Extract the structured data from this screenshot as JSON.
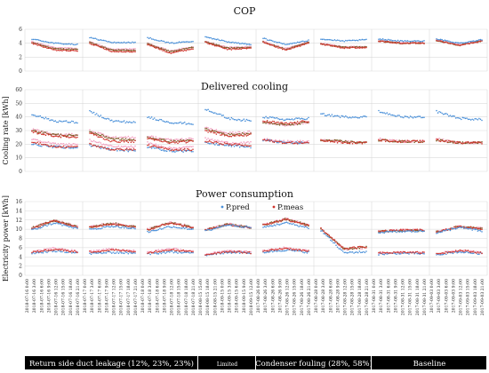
{
  "chart_data": [
    {
      "type": "scatter",
      "title": "COP",
      "ylabel": "",
      "ylim": [
        0,
        6
      ],
      "yticks": [
        0,
        2,
        4,
        6
      ],
      "grid": true,
      "segments": [
        {
          "blue": [
            4.6,
            4.0,
            3.8
          ],
          "pink": [
            4.2,
            3.4,
            3.2
          ],
          "red": [
            4.0,
            3.0,
            2.9
          ],
          "brown": [
            4.1,
            3.2,
            3.1
          ]
        },
        {
          "blue": [
            4.8,
            4.1,
            4.1
          ],
          "pink": [
            4.2,
            3.1,
            3.2
          ],
          "red": [
            4.0,
            2.8,
            2.8
          ],
          "brown": [
            4.1,
            3.0,
            3.0
          ]
        },
        {
          "blue": [
            4.8,
            4.0,
            4.3
          ],
          "pink": [
            4.0,
            2.9,
            3.5
          ],
          "red": [
            3.8,
            2.6,
            3.2
          ],
          "brown": [
            3.9,
            2.8,
            3.4
          ]
        },
        {
          "blue": [
            4.9,
            4.2,
            3.8
          ],
          "pink": [
            4.3,
            3.4,
            3.5
          ],
          "red": [
            4.1,
            3.1,
            3.3
          ],
          "brown": [
            4.2,
            3.3,
            3.4
          ]
        },
        {
          "blue": [
            4.7,
            3.8,
            4.4
          ],
          "pink": [
            4.3,
            3.2,
            4.2
          ],
          "red": [
            4.1,
            3.0,
            4.0
          ],
          "brown": [
            4.2,
            3.1,
            4.1
          ]
        },
        {
          "blue": [
            4.6,
            4.3,
            4.5
          ],
          "pink": [
            4.0,
            3.5,
            3.5
          ],
          "red": [
            3.9,
            3.3,
            3.4
          ],
          "brown": [
            3.9,
            3.4,
            3.5
          ]
        },
        {
          "blue": [
            4.6,
            4.3,
            4.3
          ],
          "pink": [
            4.4,
            4.1,
            4.1
          ],
          "red": [
            4.3,
            4.0,
            4.0
          ],
          "brown": [
            4.3,
            4.0,
            4.0
          ]
        },
        {
          "blue": [
            4.6,
            4.0,
            4.5
          ],
          "pink": [
            4.5,
            3.8,
            4.4
          ],
          "red": [
            4.4,
            3.7,
            4.3
          ],
          "brown": [
            4.4,
            3.7,
            4.3
          ]
        }
      ]
    },
    {
      "type": "scatter",
      "title": "Delivered cooling",
      "ylabel": "Cooling rate [kWh]",
      "ylim": [
        0,
        60
      ],
      "yticks": [
        0,
        10,
        20,
        30,
        40,
        50,
        60
      ],
      "grid": true,
      "segments": [
        {
          "blue": [
            42,
            37,
            36
          ],
          "pink": [
            31,
            27,
            27
          ],
          "red": [
            29,
            26,
            25
          ],
          "brown": [
            30,
            27,
            26
          ],
          "pink2": [
            24,
            20,
            20
          ],
          "blue2": [
            20,
            18,
            17
          ],
          "red2": [
            22,
            18,
            18
          ]
        },
        {
          "blue": [
            44,
            37,
            36
          ],
          "pink": [
            30,
            25,
            25
          ],
          "red": [
            28,
            22,
            22
          ],
          "brown": [
            29,
            24,
            23
          ],
          "pink2": [
            23,
            18,
            18
          ],
          "blue2": [
            19,
            16,
            15
          ],
          "red2": [
            20,
            16,
            16
          ]
        },
        {
          "blue": [
            40,
            36,
            35
          ],
          "pink": [
            26,
            23,
            24
          ],
          "red": [
            24,
            21,
            22
          ],
          "brown": [
            25,
            22,
            23
          ],
          "pink2": [
            21,
            17,
            18
          ],
          "blue2": [
            18,
            15,
            15
          ],
          "red2": [
            19,
            16,
            16
          ]
        },
        {
          "blue": [
            46,
            39,
            37
          ],
          "pink": [
            32,
            28,
            29
          ],
          "red": [
            30,
            26,
            27
          ],
          "brown": [
            31,
            27,
            28
          ],
          "pink2": [
            24,
            21,
            21
          ],
          "blue2": [
            21,
            19,
            18
          ],
          "red2": [
            22,
            20,
            19
          ]
        },
        {
          "blue": [
            40,
            38,
            39
          ],
          "pink": [
            36,
            34,
            36
          ],
          "red": [
            37,
            35,
            37
          ],
          "brown": [
            36,
            34,
            36
          ],
          "pink2": [
            24,
            22,
            22
          ],
          "blue2": [
            23,
            21,
            21
          ],
          "red2": [
            23,
            21,
            21
          ]
        },
        {
          "blue": [
            42,
            40,
            40
          ],
          "pink": [
            23,
            22,
            21
          ],
          "red": [
            23,
            21,
            21
          ],
          "brown": [
            23,
            22,
            21
          ]
        },
        {
          "blue": [
            44,
            40,
            40
          ],
          "pink": [
            24,
            22,
            22
          ],
          "red": [
            23,
            22,
            22
          ],
          "brown": [
            23,
            22,
            22
          ]
        },
        {
          "blue": [
            44,
            39,
            38
          ],
          "pink": [
            24,
            21,
            21
          ],
          "red": [
            23,
            21,
            21
          ],
          "brown": [
            23,
            21,
            21
          ]
        }
      ]
    },
    {
      "type": "scatter",
      "title": "Power consumption",
      "ylabel": "Electricity power [kWh]",
      "ylim": [
        0,
        16
      ],
      "yticks": [
        0,
        2,
        4,
        6,
        8,
        10,
        12,
        14,
        16
      ],
      "grid": true,
      "legend": [
        {
          "name": "P.pred",
          "color": "#4a90d9"
        },
        {
          "name": "P.meas",
          "color": "#d0342c"
        }
      ],
      "segments": [
        {
          "blue": [
            9.8,
            11.4,
            10.1
          ],
          "pink": [
            10.4,
            12.0,
            10.6
          ],
          "red": [
            10.2,
            11.8,
            10.4
          ],
          "brown": [
            10.3,
            11.9,
            10.5
          ],
          "blue2": [
            4.8,
            5.3,
            4.9
          ],
          "pink2": [
            5.1,
            5.9,
            5.2
          ],
          "red2": [
            5.0,
            5.7,
            5.1
          ]
        },
        {
          "blue": [
            9.9,
            10.7,
            10.1
          ],
          "pink": [
            10.6,
            11.4,
            10.6
          ],
          "red": [
            10.4,
            11.2,
            10.4
          ],
          "brown": [
            10.5,
            11.3,
            10.5
          ],
          "blue2": [
            4.7,
            5.0,
            4.8
          ],
          "pink2": [
            5.2,
            5.7,
            5.3
          ],
          "red2": [
            5.1,
            5.5,
            5.2
          ]
        },
        {
          "blue": [
            9.4,
            10.6,
            10.0
          ],
          "pink": [
            10.0,
            11.6,
            10.5
          ],
          "red": [
            9.8,
            11.4,
            10.3
          ],
          "brown": [
            9.9,
            11.5,
            10.4
          ],
          "blue2": [
            4.6,
            5.1,
            4.8
          ],
          "pink2": [
            5.0,
            5.8,
            5.2
          ],
          "red2": [
            4.9,
            5.6,
            5.1
          ]
        },
        {
          "blue": [
            9.6,
            11.0,
            10.4
          ],
          "pink": [
            9.9,
            11.2,
            10.4
          ],
          "red": [
            9.8,
            11.0,
            10.3
          ],
          "brown": [
            9.8,
            11.1,
            10.3
          ],
          "blue2": [
            4.4,
            5.0,
            4.8
          ],
          "pink2": [
            4.6,
            5.3,
            5.0
          ],
          "red2": [
            4.5,
            5.2,
            4.9
          ]
        },
        {
          "blue": [
            10.4,
            11.4,
            10.3
          ],
          "pink": [
            11.0,
            12.3,
            11.0
          ],
          "red": [
            10.9,
            12.1,
            10.8
          ],
          "brown": [
            10.9,
            12.2,
            10.9
          ],
          "blue2": [
            5.0,
            5.5,
            5.0
          ],
          "pink2": [
            5.3,
            6.0,
            5.3
          ],
          "red2": [
            5.2,
            5.9,
            5.2
          ]
        },
        {
          "blue": [
            9.8,
            4.9,
            5.1
          ],
          "pink": [
            10.2,
            5.6,
            6.0
          ],
          "red": [
            10.1,
            5.8,
            6.2
          ],
          "brown": [
            10.1,
            5.7,
            6.1
          ]
        },
        {
          "blue": [
            9.3,
            9.5,
            9.6
          ],
          "pink": [
            9.6,
            9.8,
            9.8
          ],
          "red": [
            9.5,
            9.8,
            9.8
          ],
          "brown": [
            9.5,
            9.7,
            9.7
          ],
          "blue2": [
            4.6,
            4.8,
            4.7
          ],
          "pink2": [
            4.8,
            5.0,
            4.9
          ],
          "red2": [
            4.8,
            5.0,
            4.9
          ]
        },
        {
          "blue": [
            9.2,
            10.4,
            9.6
          ],
          "pink": [
            9.4,
            10.6,
            10.2
          ],
          "red": [
            9.4,
            10.6,
            10.1
          ],
          "brown": [
            9.4,
            10.6,
            10.1
          ],
          "blue2": [
            4.5,
            5.1,
            4.7
          ],
          "pink2": [
            4.7,
            5.4,
            4.9
          ],
          "red2": [
            4.7,
            5.4,
            4.9
          ]
        }
      ]
    }
  ],
  "x_tick_labels": [
    "2018-07-16 0:00",
    "2018-07-16 3:00",
    "2018-07-16 6:00",
    "2018-07-16 9:00",
    "2018-07-16 12:00",
    "2018-07-16 15:00",
    "2018-07-16 18:00",
    "2018-07-16 21:00",
    "2018-07-17 0:00",
    "2018-07-17 3:00",
    "2018-07-17 6:00",
    "2018-07-17 9:00",
    "2018-07-17 12:00",
    "2018-07-17 15:00",
    "2018-07-17 18:00",
    "2018-07-17 21:00",
    "2018-07-18 0:00",
    "2018-07-18 3:00",
    "2018-07-18 6:00",
    "2018-07-18 9:00",
    "2018-07-18 12:00",
    "2018-07-18 15:00",
    "2018-07-18 18:00",
    "2018-07-18 21:00",
    "2018-08-15 15:00",
    "2018-08-15 18:00",
    "2018-08-15 21:00",
    "2018-09-15 0:00",
    "2018-09-15 3:00",
    "2018-09-15 6:00",
    "2018-09-15 9:00",
    "2018-09-15 12:00",
    "2017-08-26 0:00",
    "2017-08-26 3:00",
    "2017-08-26 6:00",
    "2017-08-26 9:00",
    "2017-08-26 12:00",
    "2017-08-26 15:00",
    "2017-08-26 18:00",
    "2017-08-26 21:00",
    "2017-08-28 0:00",
    "2017-08-28 3:00",
    "2017-08-28 6:00",
    "2017-08-28 9:00",
    "2017-08-28 12:00",
    "2017-08-28 15:00",
    "2017-08-28 18:00",
    "2017-08-28 21:00",
    "2017-08-31 0:00",
    "2017-08-31 3:00",
    "2017-08-31 6:00",
    "2017-08-31 9:00",
    "2017-08-31 12:00",
    "2017-08-31 15:00",
    "2017-08-31 18:00",
    "2017-08-31 21:00",
    "2017-09-03 0:00",
    "2017-09-03 3:00",
    "2017-09-03 6:00",
    "2017-09-03 9:00",
    "2017-09-03 12:00",
    "2017-09-03 15:00",
    "2017-09-03 18:00",
    "2017-09-03 21:00"
  ],
  "bands": [
    {
      "label": "Return side duct leakage (12%, 23%, 23%)",
      "span": [
        0,
        3
      ]
    },
    {
      "label": "Limited",
      "span": [
        3,
        4
      ]
    },
    {
      "label": "Condenser fouling (28%, 58%)",
      "span": [
        4,
        6
      ]
    },
    {
      "label": "Baseline",
      "span": [
        6,
        8
      ]
    }
  ],
  "colors": {
    "blue": "#4a90d9",
    "pink": "#f2a0c0",
    "red": "#d0342c",
    "brown": "#7a5a22",
    "grid": "#d9d9d9",
    "band": "#000000"
  }
}
